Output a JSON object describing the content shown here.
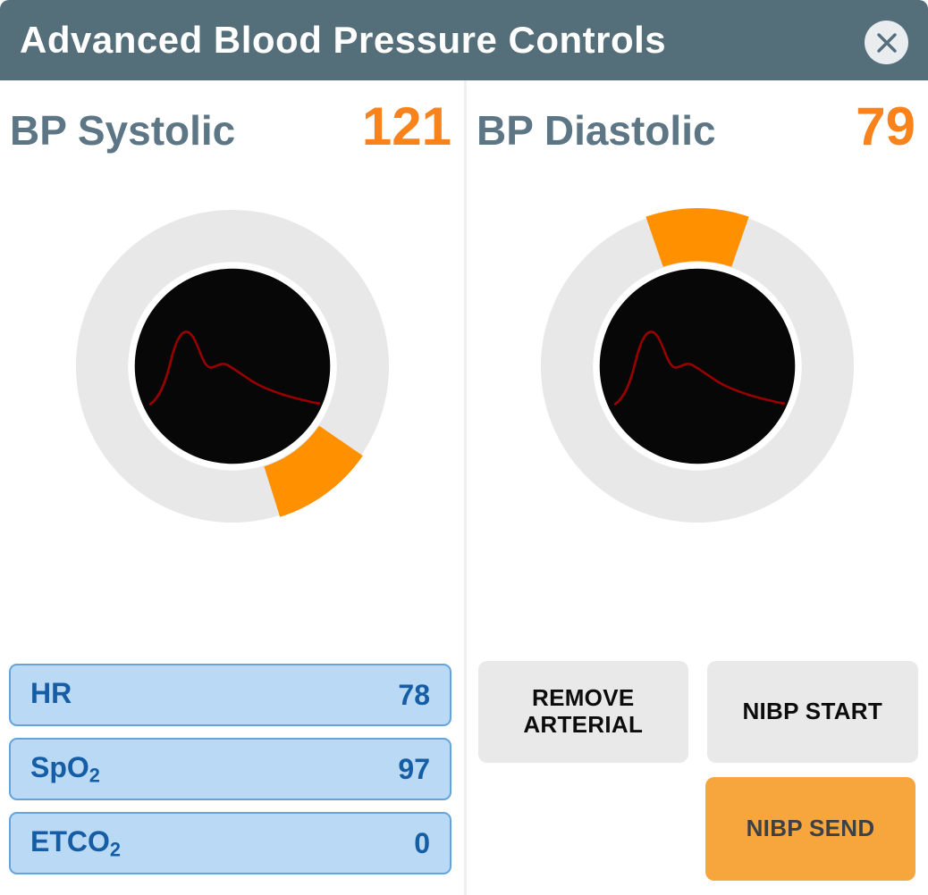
{
  "header": {
    "title": "Advanced Blood Pressure Controls",
    "close_icon": "x-circle"
  },
  "dials": [
    {
      "id": "systolic",
      "label": "BP Systolic",
      "value": "121",
      "wedge_center_deg": 143.5,
      "wedge_span_deg": 38
    },
    {
      "id": "diastolic",
      "label": "BP Diastolic",
      "value": "79",
      "wedge_center_deg": 0,
      "wedge_span_deg": 38
    }
  ],
  "vitals": [
    {
      "label": "HR",
      "sub": "",
      "value": "78"
    },
    {
      "label": "SpO",
      "sub": "2",
      "value": "97"
    },
    {
      "label": "ETCO",
      "sub": "2",
      "value": "0"
    }
  ],
  "buttons": {
    "remove_arterial": "REMOVE ARTERIAL",
    "nibp_start": "NIBP START",
    "nibp_send": "NIBP SEND"
  },
  "colors": {
    "titlebar_bg": "#546e7a",
    "accent_orange_value": "#f8821c",
    "wedge_orange": "#ff9000",
    "send_button_orange": "#f7a63e",
    "slate_label": "#5d7685",
    "vital_fill": "#b9d9f5",
    "vital_border": "#64a4de",
    "vital_text": "#155da4",
    "ring_gray": "#e8e8e8",
    "waveform_red": "#990000"
  }
}
